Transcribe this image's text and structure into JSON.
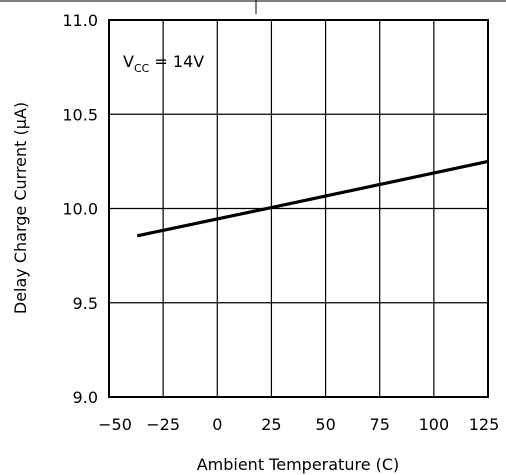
{
  "chart_data": {
    "type": "line",
    "title": "",
    "xlabel": "Ambient Temperature (C)",
    "ylabel": "Delay Charge Current (μA)",
    "xlim": [
      -50,
      125
    ],
    "ylim": [
      9.0,
      11.0
    ],
    "x_ticks": [
      -50,
      -25,
      0,
      25,
      50,
      75,
      100,
      125
    ],
    "x_tick_labels": [
      "−50",
      "−25",
      "0",
      "25",
      "50",
      "75",
      "100",
      "125"
    ],
    "y_ticks": [
      9.0,
      9.5,
      10.0,
      10.5,
      11.0
    ],
    "y_tick_labels": [
      "9.0",
      "9.5",
      "10.0",
      "10.5",
      "11.0"
    ],
    "grid": true,
    "annotation": {
      "main": "V",
      "sub": "CC",
      "rest": " = 14V"
    },
    "series": [
      {
        "x": [
          -37,
          25,
          125
        ],
        "y": [
          9.855,
          10.005,
          10.25
        ]
      }
    ]
  }
}
